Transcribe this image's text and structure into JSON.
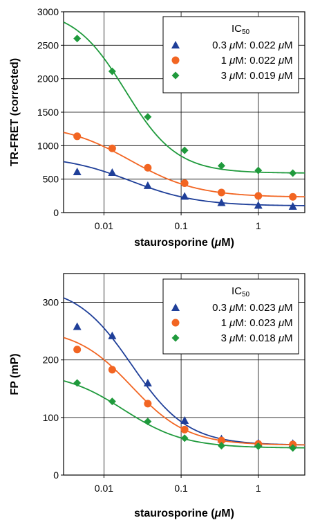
{
  "chart_data": [
    {
      "type": "scatter",
      "xscale": "log",
      "xlim": [
        0.003,
        4
      ],
      "ylim": [
        0,
        3000
      ],
      "yticks": [
        0,
        500,
        1000,
        1500,
        2000,
        2500,
        3000
      ],
      "ytick_labels": [
        "0",
        "500",
        "1000",
        "1500",
        "2000",
        "2500",
        "3000"
      ],
      "xticks": [
        0.01,
        0.1,
        1
      ],
      "xtick_labels": [
        "0.01",
        "0.1",
        "1"
      ],
      "xlabel_pre": "staurosporine (",
      "xlabel_mu": "μ",
      "xlabel_post": "M)",
      "ylabel": "TR-FRET (corrected)",
      "grid": true,
      "legend_position": "top-right",
      "legend_title": "IC",
      "legend_title_sub": "50",
      "series": [
        {
          "name": "0.3 μM: 0.022 μM",
          "name_conc": "0.3",
          "name_ic": "0.022",
          "color": "#1f3f99",
          "marker": "triangle",
          "x": [
            0.0045,
            0.0128,
            0.037,
            0.111,
            0.333,
            1.0,
            2.8
          ],
          "y": [
            610,
            600,
            405,
            245,
            150,
            110,
            95
          ],
          "fit": {
            "bottom": 100,
            "top": 850,
            "ic50": 0.022,
            "hill": 1.0
          }
        },
        {
          "name": "1 μM: 0.022 μM",
          "name_conc": "1",
          "name_ic": "0.022",
          "color": "#f26522",
          "marker": "circle",
          "x": [
            0.0045,
            0.0128,
            0.037,
            0.111,
            0.333,
            1.0,
            2.8
          ],
          "y": [
            1140,
            960,
            670,
            440,
            300,
            250,
            235
          ],
          "fit": {
            "bottom": 230,
            "top": 1330,
            "ic50": 0.022,
            "hill": 1.0
          }
        },
        {
          "name": "3 μM: 0.019 μM",
          "name_conc": "3",
          "name_ic": "0.019",
          "color": "#1f9a3c",
          "marker": "diamond",
          "x": [
            0.0045,
            0.0128,
            0.037,
            0.111,
            0.333,
            1.0,
            2.8
          ],
          "y": [
            2600,
            2110,
            1430,
            930,
            700,
            630,
            590
          ],
          "fit": {
            "bottom": 590,
            "top": 3050,
            "ic50": 0.019,
            "hill": 1.3
          }
        }
      ]
    },
    {
      "type": "scatter",
      "xscale": "log",
      "xlim": [
        0.003,
        4
      ],
      "ylim": [
        0,
        350
      ],
      "yticks": [
        0,
        100,
        200,
        300
      ],
      "ytick_labels": [
        "0",
        "100",
        "200",
        "300"
      ],
      "xticks": [
        0.01,
        0.1,
        1
      ],
      "xtick_labels": [
        "0.01",
        "0.1",
        "1"
      ],
      "xlabel_pre": "staurosporine (",
      "xlabel_mu": "μ",
      "xlabel_post": "M)",
      "ylabel": "FP (mP)",
      "grid": true,
      "legend_position": "top-right",
      "legend_title": "IC",
      "legend_title_sub": "50",
      "series": [
        {
          "name": "0.3 μM: 0.023 μM",
          "name_conc": "0.3",
          "name_ic": "0.023",
          "color": "#1f3f99",
          "marker": "triangle",
          "x": [
            0.0045,
            0.0128,
            0.037,
            0.111,
            0.333,
            1.0,
            2.8
          ],
          "y": [
            258,
            242,
            160,
            95,
            63,
            56,
            55
          ],
          "fit": {
            "bottom": 52,
            "top": 330,
            "ic50": 0.023,
            "hill": 1.2
          }
        },
        {
          "name": "1 μM: 0.023 μM",
          "name_conc": "1",
          "name_ic": "0.023",
          "color": "#f26522",
          "marker": "circle",
          "x": [
            0.0045,
            0.0128,
            0.037,
            0.111,
            0.333,
            1.0,
            2.8
          ],
          "y": [
            218,
            183,
            124,
            79,
            60,
            54,
            53
          ],
          "fit": {
            "bottom": 52,
            "top": 255,
            "ic50": 0.023,
            "hill": 1.2
          }
        },
        {
          "name": "3 μM: 0.018 μM",
          "name_conc": "3",
          "name_ic": "0.018",
          "color": "#1f9a3c",
          "marker": "diamond",
          "x": [
            0.0045,
            0.0128,
            0.037,
            0.111,
            0.333,
            1.0,
            2.8
          ],
          "y": [
            160,
            128,
            93,
            64,
            51,
            50,
            47
          ],
          "fit": {
            "bottom": 47,
            "top": 180,
            "ic50": 0.018,
            "hill": 1.1
          }
        }
      ]
    }
  ]
}
